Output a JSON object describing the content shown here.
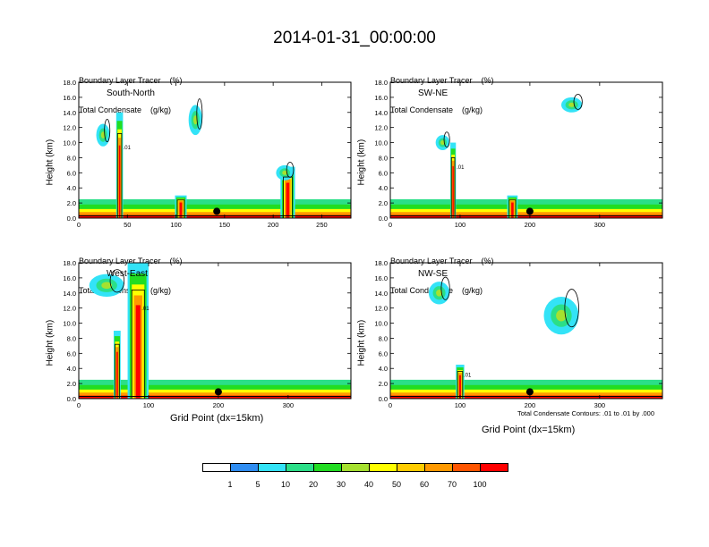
{
  "title": "2014-01-31_00:00:00",
  "panel_header": {
    "line1": "Boundary Layer Tracer    (%)",
    "line2": "Total Condensate    (g/kg)"
  },
  "ylabel": "Height (km)",
  "xlabel": "Grid Point (dx=15km)",
  "footnote": "Total Condensate Contours: .01 to .01 by .000",
  "contour_label": ".01",
  "colorbar": {
    "labels": [
      "1",
      "5",
      "10",
      "20",
      "30",
      "40",
      "50",
      "60",
      "70",
      "100"
    ],
    "colors": [
      "#ffffff",
      "#2f8df2",
      "#33e3f7",
      "#2bdf88",
      "#22dd22",
      "#a6e12f",
      "#ffff00",
      "#ffcc00",
      "#ff9900",
      "#ff5500",
      "#ff0000"
    ]
  },
  "chart_data": [
    {
      "type": "heatmap",
      "name": "South-North",
      "panel_label": "South-North",
      "xlim": [
        0,
        280
      ],
      "ylim": [
        0,
        18
      ],
      "xticks": [
        "0",
        "50",
        "100",
        "150",
        "200",
        "250"
      ],
      "xtick_values": [
        0,
        50,
        100,
        150,
        200,
        250
      ],
      "yticks": [
        "0.0",
        "2.0",
        "4.0",
        "6.0",
        "8.0",
        "10.0",
        "12.0",
        "14.0",
        "16.0",
        "18.0"
      ],
      "ytick_values": [
        0,
        2,
        4,
        6,
        8,
        10,
        12,
        14,
        16,
        18
      ],
      "marker_x": 142,
      "plumes": [
        {
          "x": 42,
          "top": 14,
          "width": 7
        },
        {
          "x": 105,
          "top": 3,
          "width": 12
        },
        {
          "x": 215,
          "top": 6.8,
          "width": 15
        }
      ],
      "blobs": [
        {
          "x": 25,
          "y": 11,
          "w": 14,
          "h": 3
        },
        {
          "x": 120,
          "y": 13,
          "w": 14,
          "h": 4
        },
        {
          "x": 212,
          "y": 6,
          "w": 18,
          "h": 2
        }
      ]
    },
    {
      "type": "heatmap",
      "name": "SW-NE",
      "panel_label": "SW-NE",
      "xlim": [
        0,
        390
      ],
      "ylim": [
        0,
        18
      ],
      "xticks": [
        "0",
        "100",
        "200",
        "300"
      ],
      "xtick_values": [
        0,
        100,
        200,
        300
      ],
      "yticks": [
        "0.0",
        "2.0",
        "4.0",
        "6.0",
        "8.0",
        "10.0",
        "12.0",
        "14.0",
        "16.0",
        "18.0"
      ],
      "ytick_values": [
        0,
        2,
        4,
        6,
        8,
        10,
        12,
        14,
        16,
        18
      ],
      "marker_x": 200,
      "plumes": [
        {
          "x": 90,
          "top": 10,
          "width": 8
        },
        {
          "x": 175,
          "top": 3,
          "width": 15
        }
      ],
      "blobs": [
        {
          "x": 75,
          "y": 10,
          "w": 20,
          "h": 2
        },
        {
          "x": 260,
          "y": 15,
          "w": 30,
          "h": 2
        }
      ]
    },
    {
      "type": "heatmap",
      "name": "West-East",
      "panel_label": "West-East",
      "xlim": [
        0,
        390
      ],
      "ylim": [
        0,
        18
      ],
      "xticks": [
        "0",
        "100",
        "200",
        "300"
      ],
      "xtick_values": [
        0,
        100,
        200,
        300
      ],
      "yticks": [
        "0.0",
        "2.0",
        "4.0",
        "6.0",
        "8.0",
        "10.0",
        "12.0",
        "14.0",
        "16.0",
        "18.0"
      ],
      "ytick_values": [
        0,
        2,
        4,
        6,
        8,
        10,
        12,
        14,
        16,
        18
      ],
      "marker_x": 200,
      "plumes": [
        {
          "x": 85,
          "top": 18,
          "width": 30
        },
        {
          "x": 55,
          "top": 9,
          "width": 10
        }
      ],
      "blobs": [
        {
          "x": 40,
          "y": 15,
          "w": 50,
          "h": 3
        }
      ]
    },
    {
      "type": "heatmap",
      "name": "NW-SE",
      "panel_label": "NW-SE",
      "xlim": [
        0,
        390
      ],
      "ylim": [
        0,
        18
      ],
      "xticks": [
        "0",
        "100",
        "200",
        "300"
      ],
      "xtick_values": [
        0,
        100,
        200,
        300
      ],
      "yticks": [
        "0.0",
        "2.0",
        "4.0",
        "6.0",
        "8.0",
        "10.0",
        "12.0",
        "14.0",
        "16.0",
        "18.0"
      ],
      "ytick_values": [
        0,
        2,
        4,
        6,
        8,
        10,
        12,
        14,
        16,
        18
      ],
      "marker_x": 200,
      "plumes": [
        {
          "x": 100,
          "top": 4.5,
          "width": 12
        }
      ],
      "blobs": [
        {
          "x": 70,
          "y": 14,
          "w": 30,
          "h": 3
        },
        {
          "x": 245,
          "y": 11,
          "w": 50,
          "h": 5
        }
      ]
    }
  ]
}
